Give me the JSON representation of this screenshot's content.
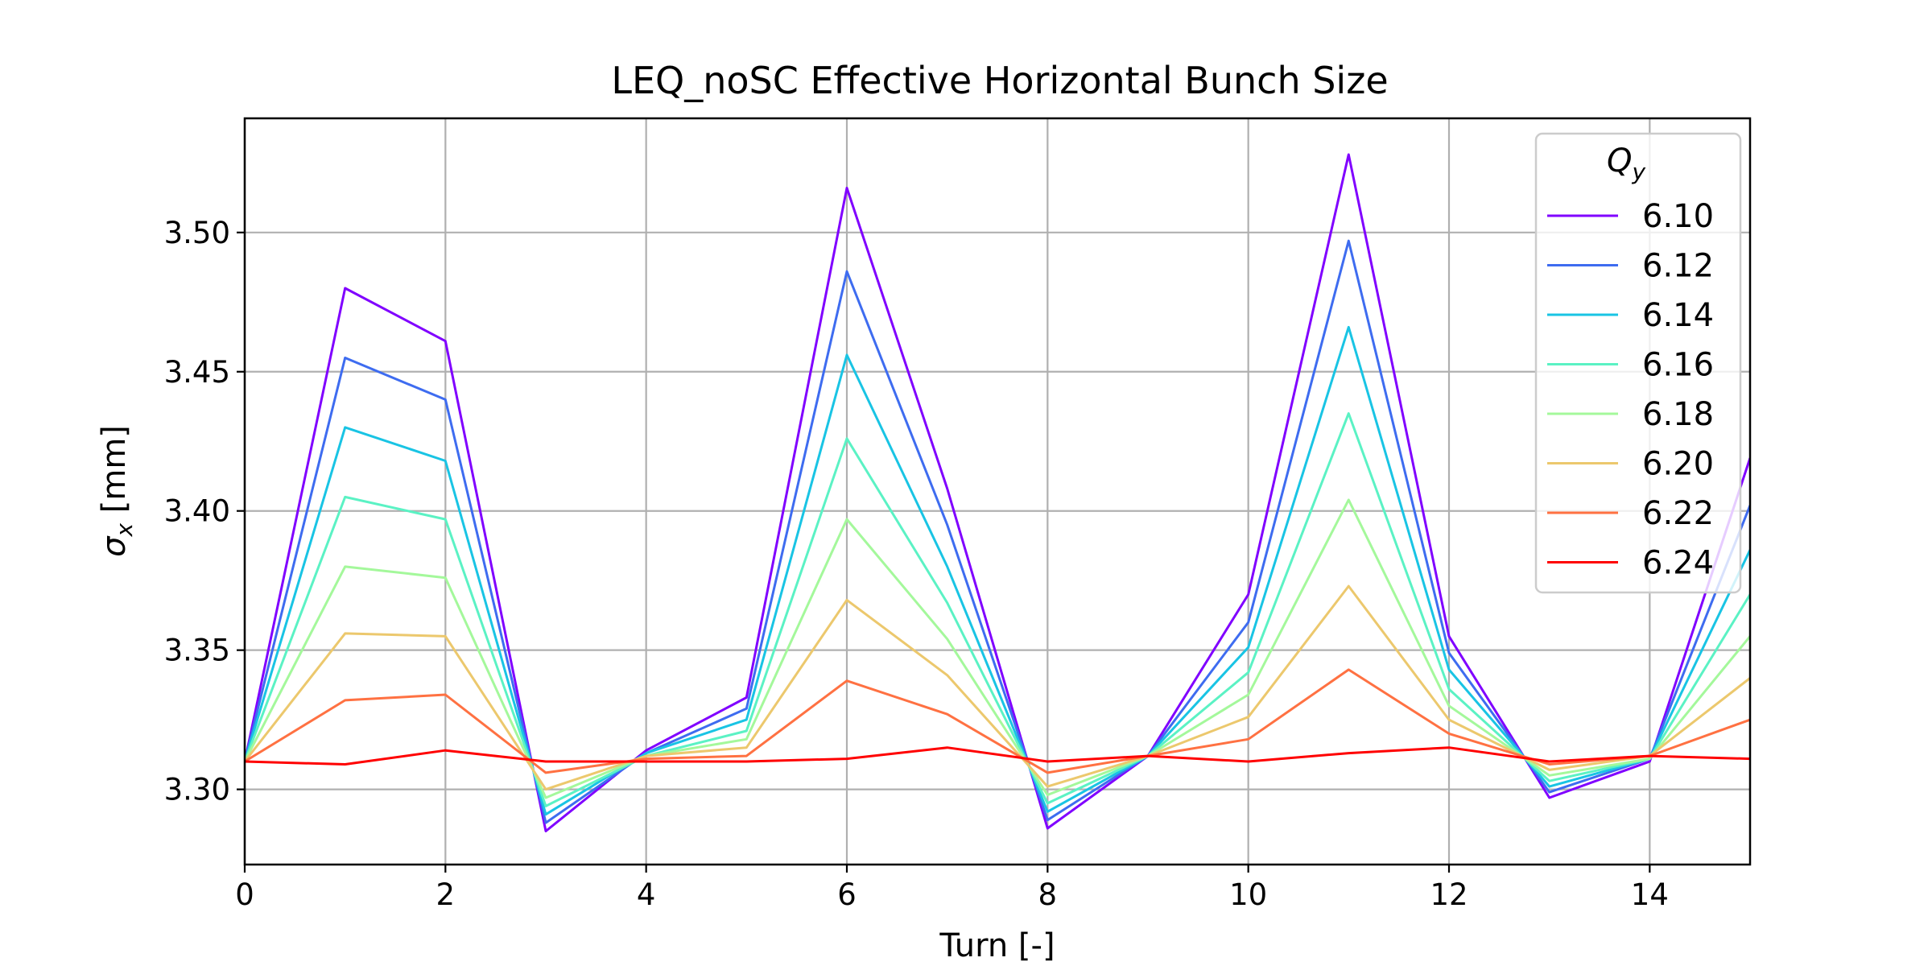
{
  "chart_data": {
    "type": "line",
    "title": "LEQ_noSC Effective Horizontal Bunch Size",
    "xlabel": "Turn [-]",
    "ylabel": {
      "symbol": "σ",
      "sub": "x",
      "unit": " [mm]"
    },
    "xlim": [
      0,
      15
    ],
    "ylim": [
      3.273,
      3.541
    ],
    "xticks": [
      0,
      2,
      4,
      6,
      8,
      10,
      12,
      14
    ],
    "yticks": [
      3.3,
      3.35,
      3.4,
      3.45,
      3.5
    ],
    "ytick_labels": [
      "3.30",
      "3.35",
      "3.40",
      "3.45",
      "3.50"
    ],
    "grid": true,
    "legend": {
      "placement": "top-right",
      "title_symbol": "Q",
      "title_sub": "y"
    },
    "x": [
      0,
      1,
      2,
      3,
      4,
      5,
      6,
      7,
      8,
      9,
      10,
      11,
      12,
      13,
      14,
      15
    ],
    "series": [
      {
        "name": "6.10",
        "color": "#8000ff",
        "values": [
          3.31,
          3.48,
          3.461,
          3.285,
          3.314,
          3.333,
          3.516,
          3.408,
          3.286,
          3.312,
          3.37,
          3.528,
          3.355,
          3.297,
          3.31,
          3.419
        ]
      },
      {
        "name": "6.12",
        "color": "#3e6cf0",
        "values": [
          3.31,
          3.455,
          3.44,
          3.288,
          3.313,
          3.329,
          3.486,
          3.395,
          3.289,
          3.312,
          3.36,
          3.497,
          3.349,
          3.299,
          3.311,
          3.402
        ]
      },
      {
        "name": "6.14",
        "color": "#19c4e4",
        "values": [
          3.31,
          3.43,
          3.418,
          3.291,
          3.313,
          3.325,
          3.456,
          3.38,
          3.292,
          3.312,
          3.351,
          3.466,
          3.343,
          3.301,
          3.311,
          3.386
        ]
      },
      {
        "name": "6.16",
        "color": "#5bf2c4",
        "values": [
          3.31,
          3.405,
          3.397,
          3.294,
          3.312,
          3.321,
          3.426,
          3.367,
          3.295,
          3.312,
          3.342,
          3.435,
          3.336,
          3.303,
          3.311,
          3.37
        ]
      },
      {
        "name": "6.18",
        "color": "#a4f89b",
        "values": [
          3.31,
          3.38,
          3.376,
          3.297,
          3.312,
          3.318,
          3.397,
          3.354,
          3.298,
          3.312,
          3.334,
          3.404,
          3.33,
          3.305,
          3.311,
          3.355
        ]
      },
      {
        "name": "6.20",
        "color": "#ecc86d",
        "values": [
          3.31,
          3.356,
          3.355,
          3.3,
          3.312,
          3.315,
          3.368,
          3.341,
          3.301,
          3.312,
          3.326,
          3.373,
          3.325,
          3.307,
          3.312,
          3.34
        ]
      },
      {
        "name": "6.22",
        "color": "#ff7142",
        "values": [
          3.31,
          3.332,
          3.334,
          3.306,
          3.311,
          3.312,
          3.339,
          3.327,
          3.306,
          3.312,
          3.318,
          3.343,
          3.32,
          3.309,
          3.312,
          3.325
        ]
      },
      {
        "name": "6.24",
        "color": "#ff0000",
        "values": [
          3.31,
          3.309,
          3.314,
          3.31,
          3.31,
          3.31,
          3.311,
          3.315,
          3.31,
          3.312,
          3.31,
          3.313,
          3.315,
          3.31,
          3.312,
          3.311
        ]
      }
    ]
  }
}
